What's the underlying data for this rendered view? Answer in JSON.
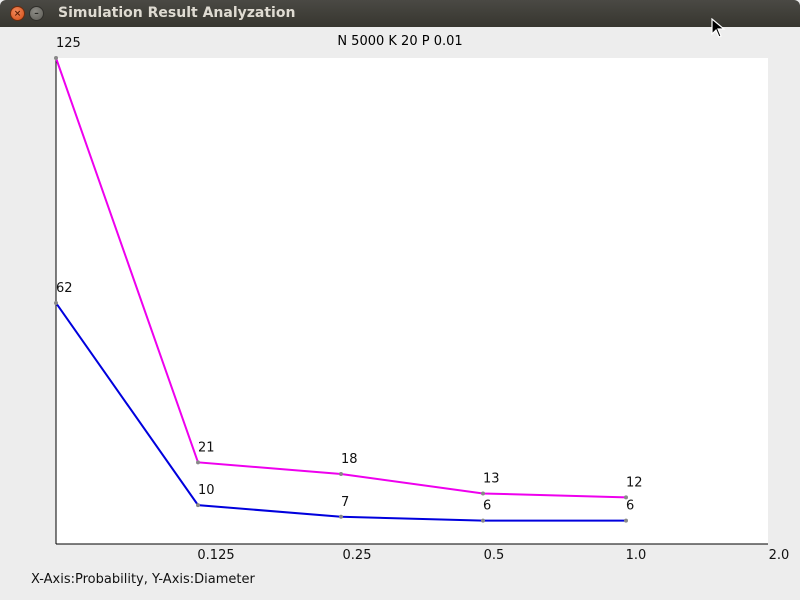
{
  "window": {
    "title": "Simulation Result Analyzation",
    "close_glyph": "×",
    "minimize_glyph": "–"
  },
  "chart_data": {
    "type": "line",
    "title": "N 5000 K 20 P 0.01",
    "x_tick_labels": [
      "0.125",
      "0.25",
      "0.5",
      "1.0",
      "2.0"
    ],
    "series": [
      {
        "color": "#ee00ee",
        "values": [
          125,
          21,
          18,
          13,
          12
        ]
      },
      {
        "color": "#0000dd",
        "values": [
          62,
          10,
          7,
          6,
          6
        ]
      }
    ],
    "ylim": [
      0,
      125
    ],
    "grid": false
  },
  "axis_caption": "X-Axis:Probability, Y-Axis:Diameter"
}
